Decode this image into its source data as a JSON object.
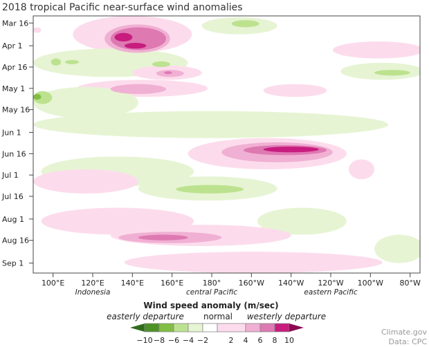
{
  "chart_data": {
    "type": "heatmap",
    "title": "2018 tropical Pacific near-surface wind anomalies",
    "x_range_lon_east": [
      90,
      285
    ],
    "y_range_dates": [
      "03-11",
      "09-08"
    ],
    "y_ticks": [
      {
        "label": "Mar 16",
        "date": "03-16"
      },
      {
        "label": "Apr 1",
        "date": "04-01"
      },
      {
        "label": "Apr 16",
        "date": "04-16"
      },
      {
        "label": "May 1",
        "date": "05-01"
      },
      {
        "label": "May 16",
        "date": "05-16"
      },
      {
        "label": "Jun 1",
        "date": "06-01"
      },
      {
        "label": "Jun 16",
        "date": "06-16"
      },
      {
        "label": "Jul 1",
        "date": "07-01"
      },
      {
        "label": "Jul 16",
        "date": "07-16"
      },
      {
        "label": "Aug 1",
        "date": "08-01"
      },
      {
        "label": "Aug 16",
        "date": "08-16"
      },
      {
        "label": "Sep 1",
        "date": "09-01"
      }
    ],
    "x_ticks": [
      {
        "label": "100°E",
        "lon": 100
      },
      {
        "label": "120°E",
        "lon": 120
      },
      {
        "label": "140°E",
        "lon": 140
      },
      {
        "label": "160°E",
        "lon": 160
      },
      {
        "label": "180°",
        "lon": 180
      },
      {
        "label": "160°W",
        "lon": 200
      },
      {
        "label": "140°W",
        "lon": 220
      },
      {
        "label": "120°W",
        "lon": 240
      },
      {
        "label": "100°W",
        "lon": 260
      },
      {
        "label": "80°W",
        "lon": 280
      }
    ],
    "region_labels": [
      {
        "label": "Indonesia",
        "lon": 120
      },
      {
        "label": "central Pacific",
        "lon": 180
      },
      {
        "label": "eastern Pacific",
        "lon": 240
      }
    ],
    "anomaly_regions": [
      {
        "lon": [
          110,
          170
        ],
        "dates": [
          "03-11",
          "04-06"
        ],
        "value": 2
      },
      {
        "lon": [
          90,
          94
        ],
        "dates": [
          "03-19",
          "03-23"
        ],
        "value": 2
      },
      {
        "lon": [
          175,
          213
        ],
        "dates": [
          "03-12",
          "03-24"
        ],
        "value": -2
      },
      {
        "lon": [
          190,
          204
        ],
        "dates": [
          "03-14",
          "03-19"
        ],
        "value": -4
      },
      {
        "lon": [
          126,
          159
        ],
        "dates": [
          "03-17",
          "04-06"
        ],
        "value": 4
      },
      {
        "lon": [
          129,
          157
        ],
        "dates": [
          "03-19",
          "04-04"
        ],
        "value": 6
      },
      {
        "lon": [
          131,
          140
        ],
        "dates": [
          "03-23",
          "03-29"
        ],
        "value": 8
      },
      {
        "lon": [
          136,
          147
        ],
        "dates": [
          "03-30",
          "04-03"
        ],
        "value": 8
      },
      {
        "lon": [
          90,
          168
        ],
        "dates": [
          "04-03",
          "04-23"
        ],
        "value": -2
      },
      {
        "lon": [
          99,
          104
        ],
        "dates": [
          "04-10",
          "04-15"
        ],
        "value": -4
      },
      {
        "lon": [
          106,
          113
        ],
        "dates": [
          "04-11",
          "04-14"
        ],
        "value": -4
      },
      {
        "lon": [
          150,
          159
        ],
        "dates": [
          "04-12",
          "04-16"
        ],
        "value": -4
      },
      {
        "lon": [
          241,
          287
        ],
        "dates": [
          "03-29",
          "04-10"
        ],
        "value": 2
      },
      {
        "lon": [
          245,
          287
        ],
        "dates": [
          "04-13",
          "04-25"
        ],
        "value": -2
      },
      {
        "lon": [
          262,
          280
        ],
        "dates": [
          "04-18",
          "04-22"
        ],
        "value": -4
      },
      {
        "lon": [
          140,
          175
        ],
        "dates": [
          "04-15",
          "04-25"
        ],
        "value": 2
      },
      {
        "lon": [
          152,
          166
        ],
        "dates": [
          "04-18",
          "04-23"
        ],
        "value": 4
      },
      {
        "lon": [
          156,
          160
        ],
        "dates": [
          "04-19",
          "04-21"
        ],
        "value": 6
      },
      {
        "lon": [
          112,
          178
        ],
        "dates": [
          "04-25",
          "05-07"
        ],
        "value": 2
      },
      {
        "lon": [
          129,
          157
        ],
        "dates": [
          "04-28",
          "05-05"
        ],
        "value": 4
      },
      {
        "lon": [
          90,
          143
        ],
        "dates": [
          "04-30",
          "05-22"
        ],
        "value": -2
      },
      {
        "lon": [
          90,
          99.5
        ],
        "dates": [
          "05-03",
          "05-12"
        ],
        "value": -4
      },
      {
        "lon": [
          90,
          94
        ],
        "dates": [
          "05-05",
          "05-09"
        ],
        "value": -6
      },
      {
        "lon": [
          206,
          238
        ],
        "dates": [
          "04-28",
          "05-07"
        ],
        "value": 2
      },
      {
        "lon": [
          90,
          269
        ],
        "dates": [
          "05-17",
          "06-05"
        ],
        "value": -2
      },
      {
        "lon": [
          168,
          248
        ],
        "dates": [
          "06-05",
          "06-27"
        ],
        "value": 2
      },
      {
        "lon": [
          185,
          241
        ],
        "dates": [
          "06-08",
          "06-22"
        ],
        "value": 4
      },
      {
        "lon": [
          196,
          238
        ],
        "dates": [
          "06-10",
          "06-17"
        ],
        "value": 6
      },
      {
        "lon": [
          206,
          234
        ],
        "dates": [
          "06-11",
          "06-15"
        ],
        "value": 8
      },
      {
        "lon": [
          94,
          171
        ],
        "dates": [
          "06-18",
          "07-09"
        ],
        "value": -2
      },
      {
        "lon": [
          90,
          143
        ],
        "dates": [
          "06-27",
          "07-14"
        ],
        "value": 2
      },
      {
        "lon": [
          249,
          262
        ],
        "dates": [
          "06-20",
          "07-04"
        ],
        "value": 2
      },
      {
        "lon": [
          143,
          213
        ],
        "dates": [
          "07-02",
          "07-19"
        ],
        "value": -2
      },
      {
        "lon": [
          162,
          196
        ],
        "dates": [
          "07-08",
          "07-14"
        ],
        "value": -4
      },
      {
        "lon": [
          94,
          171
        ],
        "dates": [
          "07-24",
          "08-12"
        ],
        "value": 2
      },
      {
        "lon": [
          203,
          248
        ],
        "dates": [
          "07-24",
          "08-12"
        ],
        "value": -2
      },
      {
        "lon": [
          129,
          220
        ],
        "dates": [
          "08-05",
          "08-20"
        ],
        "value": 2
      },
      {
        "lon": [
          133,
          185
        ],
        "dates": [
          "08-10",
          "08-18"
        ],
        "value": 4
      },
      {
        "lon": [
          143,
          168
        ],
        "dates": [
          "08-12",
          "08-16"
        ],
        "value": 6
      },
      {
        "lon": [
          262,
          287
        ],
        "dates": [
          "08-12",
          "09-01"
        ],
        "value": -2
      },
      {
        "lon": [
          136,
          266
        ],
        "dates": [
          "08-24",
          "09-08"
        ],
        "value": 2
      }
    ],
    "colorbar": {
      "title": "Wind speed anomaly (m/sec)",
      "left_label": "easterly departure",
      "center_label": "normal",
      "right_label": "westerly departure",
      "ticks": [
        "−10",
        "−8",
        "−6",
        "−4",
        "−2",
        "2",
        "4",
        "6",
        "8",
        "10"
      ],
      "levels": [
        {
          "value": -10,
          "color": "#2f6b1c"
        },
        {
          "value": -8,
          "color": "#4c9226"
        },
        {
          "value": -6,
          "color": "#82bd45"
        },
        {
          "value": -4,
          "color": "#bce28f"
        },
        {
          "value": -2,
          "color": "#e6f4d3"
        },
        {
          "value": 0,
          "color": "#ffffff"
        },
        {
          "value": 2,
          "color": "#fcdcec"
        },
        {
          "value": 4,
          "color": "#f0b0d3"
        },
        {
          "value": 6,
          "color": "#de79b2"
        },
        {
          "value": 8,
          "color": "#c81c7f"
        },
        {
          "value": 10,
          "color": "#8c0a52"
        }
      ]
    },
    "credit": {
      "line1": "Climate.gov",
      "line2": "Data: CPC"
    }
  }
}
